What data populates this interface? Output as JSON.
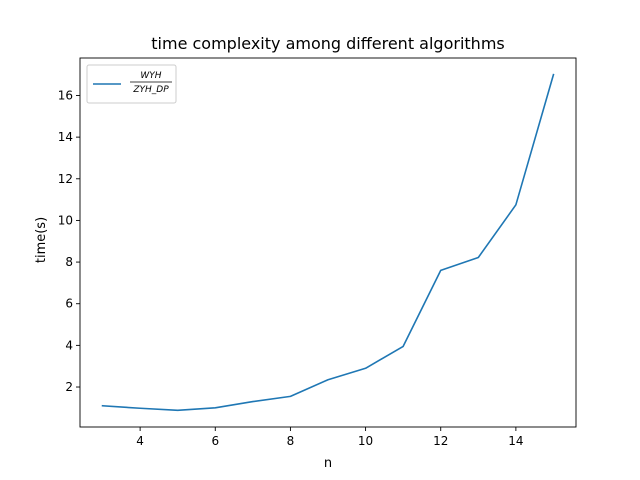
{
  "chart_data": {
    "type": "line",
    "title": "time complexity among different algorithms",
    "xlabel": "n",
    "ylabel": "time(s)",
    "x": [
      3,
      4,
      5,
      6,
      7,
      8,
      9,
      10,
      11,
      12,
      13,
      14,
      15
    ],
    "series": [
      {
        "name_numerator": "WYH",
        "name_denominator": "ZYH_DP",
        "color": "#1f77b4",
        "values": [
          1.1,
          0.98,
          0.88,
          1.0,
          1.3,
          1.55,
          2.35,
          2.9,
          3.95,
          7.6,
          8.22,
          10.75,
          17.0
        ]
      }
    ],
    "xlim": [
      2.4,
      15.6
    ],
    "ylim": [
      0.08,
      17.8
    ],
    "xticks": [
      4,
      6,
      8,
      10,
      12,
      14
    ],
    "yticks": [
      2,
      4,
      6,
      8,
      10,
      12,
      14,
      16
    ],
    "grid": false,
    "legend_position": "top-left"
  }
}
